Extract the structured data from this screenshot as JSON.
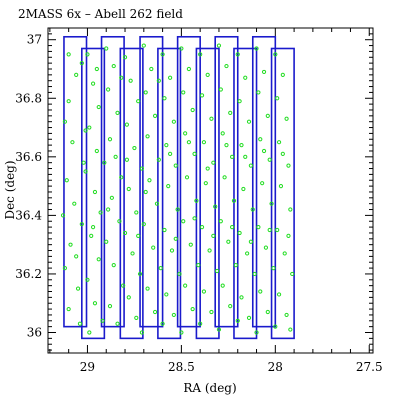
{
  "chart_data": {
    "type": "scatter",
    "title": "2MASS 6x – Abell 262 field",
    "xlabel": "RA (deg)",
    "ylabel": "Dec (deg)",
    "xlim": [
      29.21,
      27.48
    ],
    "ylim": [
      35.93,
      37.04
    ],
    "x_ticks": [
      29,
      28.5,
      28,
      27.5
    ],
    "x_tick_labels": [
      "29",
      "28.5",
      "28",
      "27.5"
    ],
    "y_ticks": [
      36,
      36.2,
      36.4,
      36.6,
      36.8,
      37
    ],
    "y_tick_labels": [
      "36",
      "36.2",
      "36.4",
      "36.6",
      "36.8",
      "37"
    ],
    "x_reversed": true,
    "grid": false,
    "footprints": [
      {
        "ra": [
          29.125,
          29.005
        ],
        "dec": [
          36.02,
          37.01
        ]
      },
      {
        "ra": [
          29.03,
          28.91
        ],
        "dec": [
          35.98,
          36.97
        ]
      },
      {
        "ra": [
          28.925,
          28.805
        ],
        "dec": [
          36.02,
          37.01
        ]
      },
      {
        "ra": [
          28.825,
          28.705
        ],
        "dec": [
          35.98,
          36.97
        ]
      },
      {
        "ra": [
          28.72,
          28.6
        ],
        "dec": [
          36.02,
          37.01
        ]
      },
      {
        "ra": [
          28.625,
          28.505
        ],
        "dec": [
          35.98,
          36.97
        ]
      },
      {
        "ra": [
          28.52,
          28.4
        ],
        "dec": [
          36.02,
          37.01
        ]
      },
      {
        "ra": [
          28.42,
          28.3
        ],
        "dec": [
          35.98,
          36.97
        ]
      },
      {
        "ra": [
          28.32,
          28.2
        ],
        "dec": [
          36.02,
          37.01
        ]
      },
      {
        "ra": [
          28.22,
          28.1
        ],
        "dec": [
          35.98,
          36.97
        ]
      },
      {
        "ra": [
          28.12,
          28.0
        ],
        "dec": [
          36.02,
          37.01
        ]
      },
      {
        "ra": [
          28.02,
          27.9
        ],
        "dec": [
          35.98,
          36.97
        ]
      }
    ],
    "points": [
      [
        29.1,
        36.95
      ],
      [
        29.06,
        36.88
      ],
      [
        29.12,
        36.72
      ],
      [
        29.08,
        36.65
      ],
      [
        29.02,
        36.58
      ],
      [
        29.11,
        36.52
      ],
      [
        29.07,
        36.44
      ],
      [
        29.03,
        36.37
      ],
      [
        29.09,
        36.3
      ],
      [
        29.12,
        36.22
      ],
      [
        29.05,
        36.15
      ],
      [
        29.1,
        36.08
      ],
      [
        29.04,
        36.03
      ],
      [
        29.13,
        36.4
      ],
      [
        29.06,
        36.26
      ],
      [
        29.01,
        36.69
      ],
      [
        29.1,
        36.79
      ],
      [
        29.03,
        36.92
      ],
      [
        29.0,
        36.95
      ],
      [
        28.97,
        36.85
      ],
      [
        28.94,
        36.77
      ],
      [
        28.99,
        36.7
      ],
      [
        28.95,
        36.62
      ],
      [
        29.01,
        36.55
      ],
      [
        28.96,
        36.48
      ],
      [
        28.93,
        36.41
      ],
      [
        28.98,
        36.33
      ],
      [
        28.94,
        36.25
      ],
      [
        29.0,
        36.18
      ],
      [
        28.96,
        36.1
      ],
      [
        28.92,
        36.04
      ],
      [
        28.99,
        36.0
      ],
      [
        28.95,
        36.9
      ],
      [
        28.97,
        36.36
      ],
      [
        28.9,
        36.97
      ],
      [
        28.86,
        36.91
      ],
      [
        28.89,
        36.83
      ],
      [
        28.84,
        36.75
      ],
      [
        28.88,
        36.66
      ],
      [
        28.85,
        36.6
      ],
      [
        28.82,
        36.53
      ],
      [
        28.87,
        36.46
      ],
      [
        28.83,
        36.38
      ],
      [
        28.9,
        36.31
      ],
      [
        28.86,
        36.23
      ],
      [
        28.81,
        36.16
      ],
      [
        28.88,
        36.09
      ],
      [
        28.84,
        36.03
      ],
      [
        28.91,
        36.58
      ],
      [
        28.82,
        36.87
      ],
      [
        28.89,
        36.42
      ],
      [
        28.8,
        36.94
      ],
      [
        28.77,
        36.86
      ],
      [
        28.73,
        36.79
      ],
      [
        28.79,
        36.71
      ],
      [
        28.75,
        36.63
      ],
      [
        28.71,
        36.56
      ],
      [
        28.78,
        36.49
      ],
      [
        28.74,
        36.41
      ],
      [
        28.8,
        36.34
      ],
      [
        28.76,
        36.27
      ],
      [
        28.72,
        36.2
      ],
      [
        28.78,
        36.12
      ],
      [
        28.74,
        36.05
      ],
      [
        28.71,
        36.0
      ],
      [
        28.79,
        36.59
      ],
      [
        28.73,
        36.33
      ],
      [
        28.7,
        36.98
      ],
      [
        28.66,
        36.9
      ],
      [
        28.69,
        36.82
      ],
      [
        28.64,
        36.74
      ],
      [
        28.68,
        36.67
      ],
      [
        28.62,
        36.59
      ],
      [
        28.67,
        36.52
      ],
      [
        28.63,
        36.44
      ],
      [
        28.7,
        36.37
      ],
      [
        28.65,
        36.29
      ],
      [
        28.61,
        36.22
      ],
      [
        28.68,
        36.15
      ],
      [
        28.64,
        36.07
      ],
      [
        28.6,
        36.03
      ],
      [
        28.69,
        36.48
      ],
      [
        28.62,
        36.86
      ],
      [
        28.6,
        36.95
      ],
      [
        28.56,
        36.87
      ],
      [
        28.59,
        36.8
      ],
      [
        28.54,
        36.72
      ],
      [
        28.58,
        36.64
      ],
      [
        28.53,
        36.57
      ],
      [
        28.57,
        36.5
      ],
      [
        28.52,
        36.42
      ],
      [
        28.59,
        36.35
      ],
      [
        28.55,
        36.28
      ],
      [
        28.51,
        36.2
      ],
      [
        28.58,
        36.13
      ],
      [
        28.54,
        36.06
      ],
      [
        28.5,
        36.0
      ],
      [
        28.56,
        36.61
      ],
      [
        28.53,
        36.32
      ],
      [
        28.5,
        36.97
      ],
      [
        28.46,
        36.9
      ],
      [
        28.49,
        36.82
      ],
      [
        28.44,
        36.76
      ],
      [
        28.48,
        36.68
      ],
      [
        28.43,
        36.61
      ],
      [
        28.47,
        36.53
      ],
      [
        28.42,
        36.45
      ],
      [
        28.49,
        36.38
      ],
      [
        28.45,
        36.3
      ],
      [
        28.41,
        36.23
      ],
      [
        28.48,
        36.16
      ],
      [
        28.44,
        36.08
      ],
      [
        28.4,
        36.03
      ],
      [
        28.46,
        36.65
      ],
      [
        28.43,
        36.39
      ],
      [
        28.4,
        36.95
      ],
      [
        28.36,
        36.88
      ],
      [
        28.39,
        36.81
      ],
      [
        28.34,
        36.73
      ],
      [
        28.38,
        36.65
      ],
      [
        28.33,
        36.58
      ],
      [
        28.37,
        36.51
      ],
      [
        28.32,
        36.43
      ],
      [
        28.39,
        36.36
      ],
      [
        28.35,
        36.28
      ],
      [
        28.31,
        36.21
      ],
      [
        28.38,
        36.14
      ],
      [
        28.34,
        36.07
      ],
      [
        28.3,
        36.01
      ],
      [
        28.36,
        36.56
      ],
      [
        28.33,
        36.33
      ],
      [
        28.3,
        36.98
      ],
      [
        28.26,
        36.91
      ],
      [
        28.29,
        36.83
      ],
      [
        28.24,
        36.75
      ],
      [
        28.28,
        36.68
      ],
      [
        28.23,
        36.6
      ],
      [
        28.27,
        36.53
      ],
      [
        28.22,
        36.45
      ],
      [
        28.29,
        36.38
      ],
      [
        28.25,
        36.31
      ],
      [
        28.21,
        36.23
      ],
      [
        28.28,
        36.16
      ],
      [
        28.24,
        36.09
      ],
      [
        28.2,
        36.04
      ],
      [
        28.26,
        36.64
      ],
      [
        28.23,
        36.36
      ],
      [
        28.2,
        36.95
      ],
      [
        28.16,
        36.87
      ],
      [
        28.19,
        36.79
      ],
      [
        28.14,
        36.72
      ],
      [
        28.18,
        36.64
      ],
      [
        28.13,
        36.57
      ],
      [
        28.17,
        36.49
      ],
      [
        28.12,
        36.42
      ],
      [
        28.19,
        36.34
      ],
      [
        28.15,
        36.27
      ],
      [
        28.11,
        36.2
      ],
      [
        28.18,
        36.12
      ],
      [
        28.14,
        36.05
      ],
      [
        28.1,
        36.0
      ],
      [
        28.16,
        36.6
      ],
      [
        28.13,
        36.31
      ],
      [
        28.1,
        36.97
      ],
      [
        28.06,
        36.89
      ],
      [
        28.09,
        36.82
      ],
      [
        28.04,
        36.74
      ],
      [
        28.08,
        36.66
      ],
      [
        28.03,
        36.59
      ],
      [
        28.07,
        36.51
      ],
      [
        28.02,
        36.44
      ],
      [
        28.09,
        36.36
      ],
      [
        28.05,
        36.29
      ],
      [
        28.01,
        36.22
      ],
      [
        28.08,
        36.14
      ],
      [
        28.04,
        36.07
      ],
      [
        28.0,
        36.02
      ],
      [
        28.06,
        36.62
      ],
      [
        28.03,
        36.35
      ],
      [
        28.0,
        36.95
      ],
      [
        27.96,
        36.88
      ],
      [
        27.99,
        36.8
      ],
      [
        27.94,
        36.73
      ],
      [
        27.98,
        36.65
      ],
      [
        27.93,
        36.57
      ],
      [
        27.97,
        36.5
      ],
      [
        27.92,
        36.42
      ],
      [
        27.99,
        36.35
      ],
      [
        27.95,
        36.27
      ],
      [
        27.91,
        36.2
      ],
      [
        27.98,
        36.13
      ],
      [
        27.94,
        36.06
      ],
      [
        27.92,
        36.01
      ],
      [
        27.96,
        36.61
      ],
      [
        27.93,
        36.33
      ]
    ]
  }
}
